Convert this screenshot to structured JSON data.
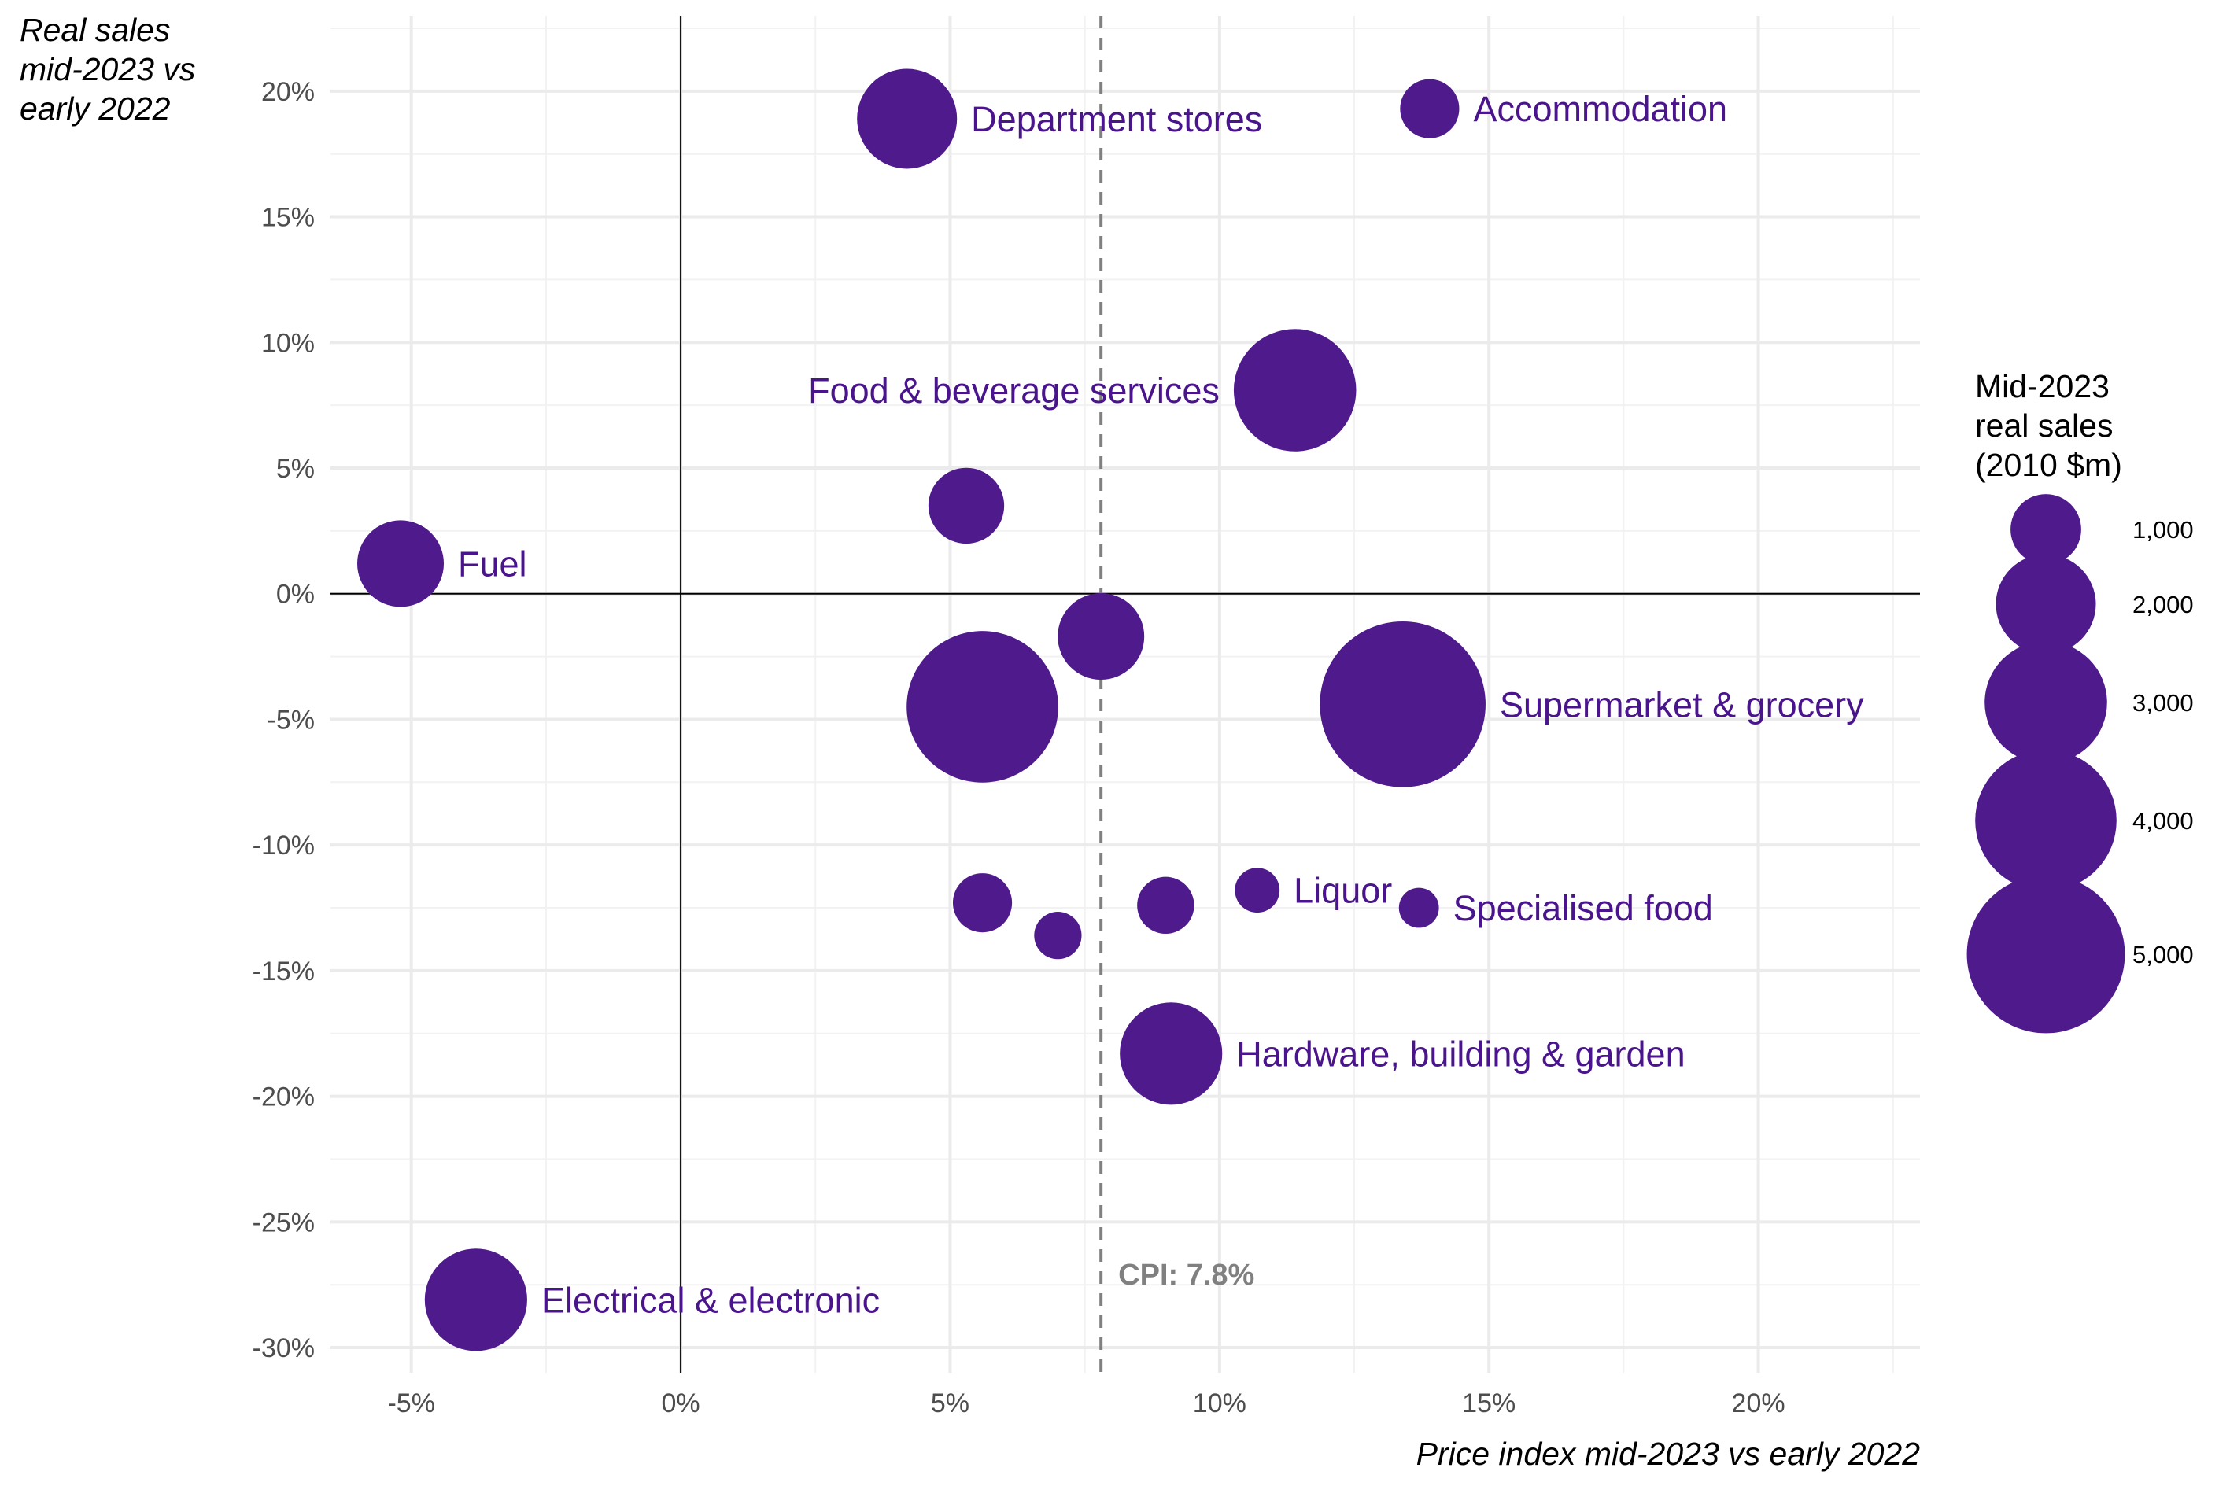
{
  "chart_data": {
    "type": "scatter",
    "xlabel": "Price index mid-2023 vs early 2022",
    "ylabel": [
      "Real sales",
      "mid-2023 vs",
      "early 2022"
    ],
    "xlim": [
      -6.5,
      23
    ],
    "ylim": [
      -31,
      23
    ],
    "x_ticks": [
      -5,
      0,
      5,
      10,
      15,
      20
    ],
    "x_tick_labels": [
      "-5%",
      "0%",
      "5%",
      "10%",
      "15%",
      "20%"
    ],
    "y_ticks": [
      20,
      15,
      10,
      5,
      0,
      -5,
      -10,
      -15,
      -20,
      -25,
      -30
    ],
    "y_tick_labels": [
      "20%",
      "15%",
      "10%",
      "5%",
      "0%",
      "-5%",
      "-10%",
      "-15%",
      "-20%",
      "-25%",
      "-30%"
    ],
    "grid": true,
    "reference_lines": {
      "horizontal_at": 0,
      "vertical_at": 0,
      "dashed_vertical_at": 7.8,
      "dashed_label": "CPI: 7.8%"
    },
    "color": "#4f1a8c",
    "label_color": "#4a148c",
    "points": [
      {
        "x": 4.2,
        "y": 18.9,
        "size": 2000,
        "label": "Department stores",
        "label_side": "right"
      },
      {
        "x": 13.9,
        "y": 19.3,
        "size": 700,
        "label": "Accommodation",
        "label_side": "right"
      },
      {
        "x": 11.4,
        "y": 8.1,
        "size": 3000,
        "label": "Food & beverage services",
        "label_side": "left"
      },
      {
        "x": 5.3,
        "y": 3.5,
        "size": 1150,
        "label": "",
        "label_side": "right"
      },
      {
        "x": -5.2,
        "y": 1.2,
        "size": 1500,
        "label": "Fuel",
        "label_side": "right"
      },
      {
        "x": 7.8,
        "y": -1.7,
        "size": 1500,
        "label": "",
        "label_side": "right"
      },
      {
        "x": 5.6,
        "y": -4.5,
        "size": 4600,
        "label": "",
        "label_side": "right"
      },
      {
        "x": 13.4,
        "y": -4.4,
        "size": 5500,
        "label": "Supermarket & grocery",
        "label_side": "right"
      },
      {
        "x": 10.7,
        "y": -11.8,
        "size": 400,
        "label": "Liquor",
        "label_side": "right"
      },
      {
        "x": 13.7,
        "y": -12.5,
        "size": 320,
        "label": "Specialised food",
        "label_side": "right"
      },
      {
        "x": 5.6,
        "y": -12.3,
        "size": 700,
        "label": "",
        "label_side": "right"
      },
      {
        "x": 9.0,
        "y": -12.4,
        "size": 650,
        "label": "",
        "label_side": "right"
      },
      {
        "x": 7.0,
        "y": -13.6,
        "size": 450,
        "label": "",
        "label_side": "right"
      },
      {
        "x": 9.1,
        "y": -18.3,
        "size": 2100,
        "label": "Hardware, building & garden",
        "label_side": "right"
      },
      {
        "x": -3.8,
        "y": -28.1,
        "size": 2100,
        "label": "Electrical & electronic",
        "label_side": "right"
      }
    ],
    "legend": {
      "title": [
        "Mid-2023",
        "real sales",
        "(2010 $m)"
      ],
      "placement": "right",
      "entries": [
        {
          "size": 1000,
          "label": "1,000"
        },
        {
          "size": 2000,
          "label": "2,000"
        },
        {
          "size": 3000,
          "label": "3,000"
        },
        {
          "size": 4000,
          "label": "4,000"
        },
        {
          "size": 5000,
          "label": "5,000"
        }
      ]
    }
  }
}
